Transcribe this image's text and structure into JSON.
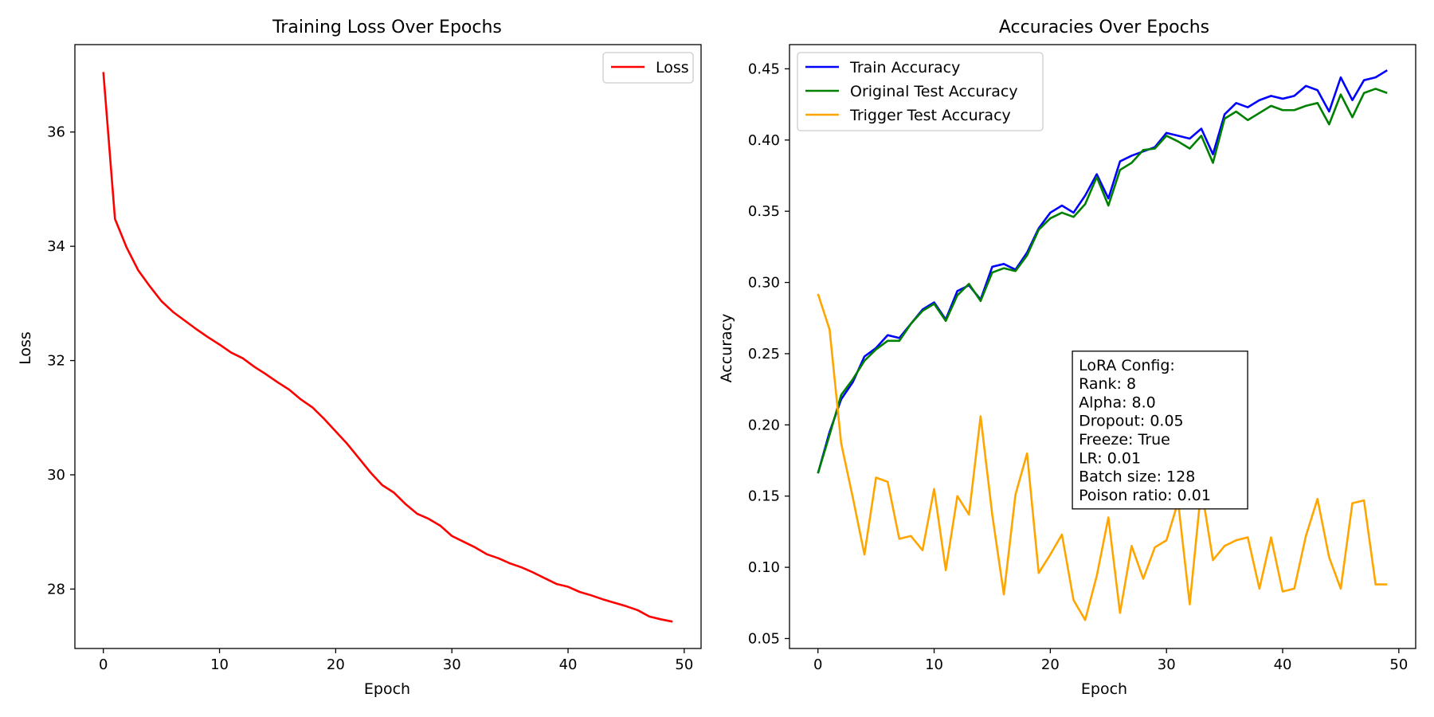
{
  "chart_data": [
    {
      "type": "line",
      "title": "Training Loss Over Epochs",
      "xlabel": "Epoch",
      "ylabel": "Loss",
      "xlim": [
        -2.45,
        51.45
      ],
      "ylim": [
        26.96,
        37.53
      ],
      "xticks": [
        0,
        10,
        20,
        30,
        40,
        50
      ],
      "yticks": [
        28,
        30,
        32,
        34,
        36
      ],
      "grid": false,
      "legend_position": "upper right",
      "x": [
        0,
        1,
        2,
        3,
        4,
        5,
        6,
        7,
        8,
        9,
        10,
        11,
        12,
        13,
        14,
        15,
        16,
        17,
        18,
        19,
        20,
        21,
        22,
        23,
        24,
        25,
        26,
        27,
        28,
        29,
        30,
        31,
        32,
        33,
        34,
        35,
        36,
        37,
        38,
        39,
        40,
        41,
        42,
        43,
        44,
        45,
        46,
        47,
        48,
        49
      ],
      "series": [
        {
          "name": "Loss",
          "color": "#ff0000",
          "values": [
            37.05,
            34.48,
            33.98,
            33.58,
            33.3,
            33.04,
            32.85,
            32.7,
            32.55,
            32.41,
            32.28,
            32.14,
            32.04,
            31.89,
            31.76,
            31.62,
            31.49,
            31.32,
            31.18,
            30.98,
            30.76,
            30.54,
            30.29,
            30.04,
            29.82,
            29.69,
            29.49,
            29.32,
            29.23,
            29.11,
            28.93,
            28.83,
            28.73,
            28.61,
            28.54,
            28.45,
            28.38,
            28.29,
            28.19,
            28.09,
            28.04,
            27.95,
            27.89,
            27.82,
            27.76,
            27.7,
            27.63,
            27.52,
            27.47,
            27.43
          ]
        }
      ]
    },
    {
      "type": "line",
      "title": "Accuracies Over Epochs",
      "xlabel": "Epoch",
      "ylabel": "Accuracy",
      "xlim": [
        -2.45,
        51.45
      ],
      "ylim": [
        0.043,
        0.467
      ],
      "xticks": [
        0,
        10,
        20,
        30,
        40,
        50
      ],
      "yticks": [
        0.05,
        0.1,
        0.15,
        0.2,
        0.25,
        0.3,
        0.35,
        0.4,
        0.45
      ],
      "ytick_labels": [
        "0.05",
        "0.10",
        "0.15",
        "0.20",
        "0.25",
        "0.30",
        "0.35",
        "0.40",
        "0.45"
      ],
      "grid": false,
      "legend_position": "upper left",
      "x": [
        0,
        1,
        2,
        3,
        4,
        5,
        6,
        7,
        8,
        9,
        10,
        11,
        12,
        13,
        14,
        15,
        16,
        17,
        18,
        19,
        20,
        21,
        22,
        23,
        24,
        25,
        26,
        27,
        28,
        29,
        30,
        31,
        32,
        33,
        34,
        35,
        36,
        37,
        38,
        39,
        40,
        41,
        42,
        43,
        44,
        45,
        46,
        47,
        48,
        49
      ],
      "series": [
        {
          "name": "Train Accuracy",
          "color": "#0000ff",
          "values": [
            0.166,
            0.195,
            0.218,
            0.23,
            0.248,
            0.254,
            0.263,
            0.261,
            0.271,
            0.281,
            0.286,
            0.274,
            0.294,
            0.298,
            0.288,
            0.311,
            0.313,
            0.309,
            0.321,
            0.338,
            0.349,
            0.354,
            0.349,
            0.361,
            0.376,
            0.359,
            0.385,
            0.389,
            0.392,
            0.395,
            0.405,
            0.403,
            0.401,
            0.408,
            0.39,
            0.418,
            0.426,
            0.423,
            0.428,
            0.431,
            0.429,
            0.431,
            0.438,
            0.435,
            0.42,
            0.444,
            0.428,
            0.442,
            0.444,
            0.449
          ]
        },
        {
          "name": "Original Test Accuracy",
          "color": "#008000",
          "values": [
            0.166,
            0.193,
            0.221,
            0.232,
            0.245,
            0.253,
            0.259,
            0.259,
            0.271,
            0.28,
            0.285,
            0.273,
            0.291,
            0.299,
            0.287,
            0.307,
            0.31,
            0.308,
            0.319,
            0.337,
            0.345,
            0.349,
            0.346,
            0.355,
            0.374,
            0.354,
            0.379,
            0.384,
            0.393,
            0.394,
            0.403,
            0.399,
            0.394,
            0.403,
            0.384,
            0.415,
            0.42,
            0.414,
            0.419,
            0.424,
            0.421,
            0.421,
            0.424,
            0.426,
            0.411,
            0.432,
            0.416,
            0.433,
            0.436,
            0.433
          ]
        },
        {
          "name": "Trigger Test Accuracy",
          "color": "#ffa500",
          "values": [
            0.292,
            0.267,
            0.187,
            0.149,
            0.109,
            0.163,
            0.16,
            0.12,
            0.122,
            0.112,
            0.155,
            0.098,
            0.15,
            0.137,
            0.206,
            0.137,
            0.081,
            0.151,
            0.18,
            0.096,
            0.109,
            0.123,
            0.077,
            0.063,
            0.094,
            0.135,
            0.068,
            0.115,
            0.092,
            0.114,
            0.119,
            0.146,
            0.074,
            0.156,
            0.105,
            0.115,
            0.119,
            0.121,
            0.085,
            0.121,
            0.083,
            0.085,
            0.122,
            0.148,
            0.107,
            0.085,
            0.145,
            0.147,
            0.088,
            0.088
          ]
        }
      ],
      "annotation": {
        "lines": [
          "LoRA Config:",
          "Rank: 8",
          "Alpha: 8.0",
          "Dropout: 0.05",
          "Freeze: True",
          "LR: 0.01",
          "Batch size: 128",
          "Poison ratio: 0.01"
        ],
        "anchor_x": 21.9,
        "anchor_y": 0.141
      }
    }
  ]
}
